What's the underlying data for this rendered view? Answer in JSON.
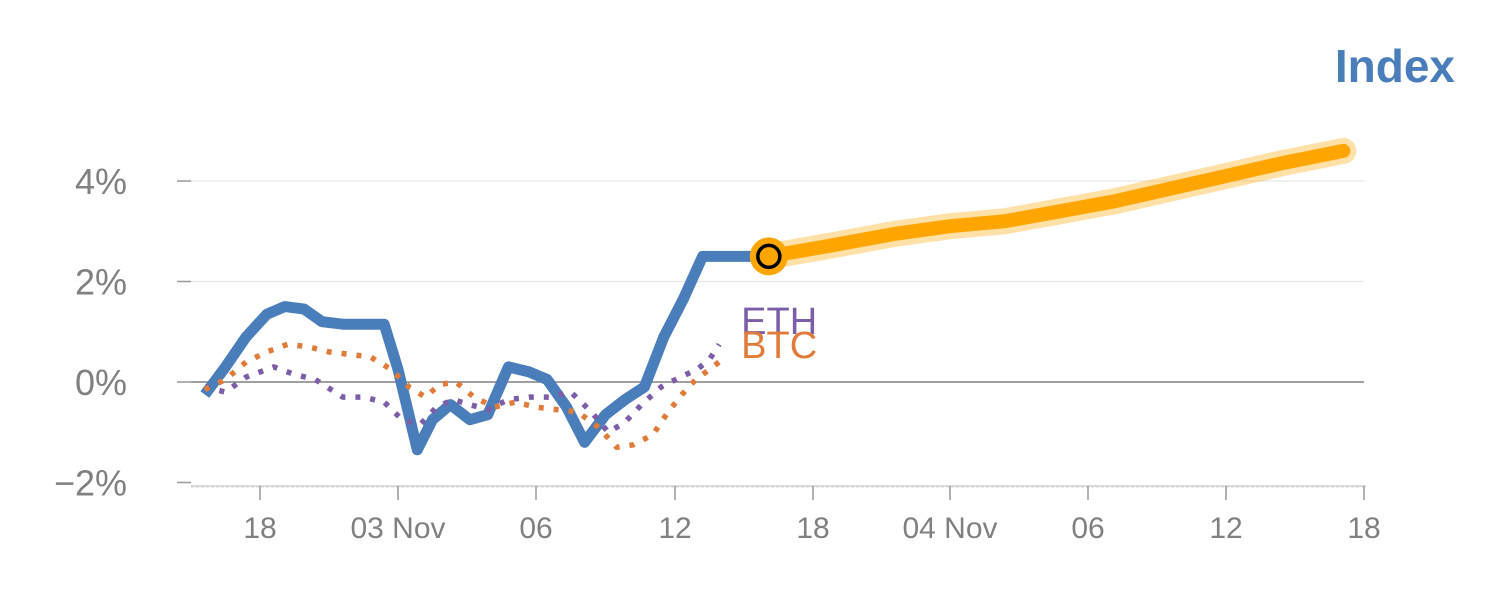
{
  "chart_data": {
    "type": "line",
    "title": "Index",
    "ylabel": "",
    "xlabel": "",
    "ylim": [
      -2,
      4
    ],
    "yticks": [
      {
        "value": 4,
        "label": "4%"
      },
      {
        "value": 2,
        "label": "2%"
      },
      {
        "value": 0,
        "label": "0%"
      },
      {
        "value": -2,
        "label": "−2%"
      }
    ],
    "xticks": [
      {
        "x": 6,
        "label": "18"
      },
      {
        "x": 16,
        "label": "03 Nov"
      },
      {
        "x": 26,
        "label": "06"
      },
      {
        "x": 36,
        "label": "12"
      },
      {
        "x": 46,
        "label": "18"
      },
      {
        "x": 56,
        "label": "04 Nov"
      },
      {
        "x": 66,
        "label": "06"
      },
      {
        "x": 76,
        "label": "12"
      },
      {
        "x": 86,
        "label": "18"
      }
    ],
    "xlim": [
      0,
      86
    ],
    "grid": true,
    "series": [
      {
        "name": "",
        "style": "solid",
        "color": "#4a7ebb",
        "x": [
          2,
          3.5,
          5,
          6.5,
          7.8,
          9.2,
          10.5,
          12,
          13.5,
          15,
          16,
          17.4,
          18.5,
          19.8,
          21.2,
          22.5,
          24,
          25.5,
          26.8,
          28.2,
          29.5,
          31,
          32.4,
          33.8,
          35.2,
          36.6,
          38,
          39,
          40.4,
          41.8,
          42.8
        ],
        "values": [
          -0.25,
          0.3,
          0.9,
          1.35,
          1.5,
          1.45,
          1.2,
          1.15,
          1.15,
          1.15,
          0.25,
          -1.35,
          -0.75,
          -0.45,
          -0.75,
          -0.65,
          0.3,
          0.2,
          0.05,
          -0.5,
          -1.2,
          -0.65,
          -0.35,
          -0.1,
          0.9,
          1.65,
          2.5,
          2.5,
          2.5,
          2.5,
          2.5
        ]
      },
      {
        "name": "",
        "style": "forecast",
        "color": "#ffa500",
        "x": [
          42.8,
          47,
          52,
          56,
          60,
          64,
          68,
          72,
          76,
          80,
          84.5
        ],
        "values": [
          2.5,
          2.7,
          2.95,
          3.1,
          3.2,
          3.4,
          3.6,
          3.85,
          4.1,
          4.35,
          4.6
        ]
      },
      {
        "name": "ETH",
        "style": "dotted",
        "color": "#7b5ea7",
        "x": [
          2,
          3.5,
          5,
          7,
          8.5,
          10,
          12,
          13.5,
          15,
          16.3,
          17.6,
          18.8,
          20,
          21.2,
          22.5,
          24,
          25.5,
          27,
          28.5,
          30,
          31.2,
          32.4,
          33.6,
          35,
          36.4,
          37.6,
          38.5,
          39.2
        ],
        "values": [
          -0.1,
          -0.2,
          0.1,
          0.3,
          0.15,
          0.05,
          -0.3,
          -0.3,
          -0.4,
          -0.75,
          -0.85,
          -0.5,
          -0.35,
          -0.45,
          -0.55,
          -0.35,
          -0.3,
          -0.3,
          -0.2,
          -0.6,
          -1.0,
          -0.8,
          -0.45,
          -0.1,
          0.1,
          0.25,
          0.45,
          0.75
        ]
      },
      {
        "name": "BTC",
        "style": "dotted",
        "color": "#e07b39",
        "x": [
          2,
          3.5,
          5,
          6.5,
          8,
          9.5,
          11,
          12.5,
          14,
          15.5,
          16.8,
          18,
          19,
          20.2,
          21.5,
          23,
          24.5,
          26,
          27.5,
          29,
          30.5,
          31.8,
          33,
          34.4,
          35.5,
          36.5,
          37.5,
          38.5,
          39.2
        ],
        "values": [
          -0.15,
          0.05,
          0.4,
          0.6,
          0.75,
          0.7,
          0.6,
          0.55,
          0.5,
          0.25,
          -0.1,
          -0.3,
          -0.05,
          0.0,
          -0.3,
          -0.5,
          -0.4,
          -0.5,
          -0.55,
          -0.6,
          -0.9,
          -1.3,
          -1.25,
          -1.05,
          -0.6,
          -0.25,
          0.05,
          0.25,
          0.4
        ]
      }
    ],
    "current_marker": {
      "x": 42.8,
      "value": 2.5,
      "color": "#ffa500"
    },
    "legend": "inline-end-of-lines"
  },
  "colors": {
    "axis": "#999999",
    "grid": "#e6e6e6",
    "zero_line": "#808080",
    "label_text": "#808080"
  }
}
